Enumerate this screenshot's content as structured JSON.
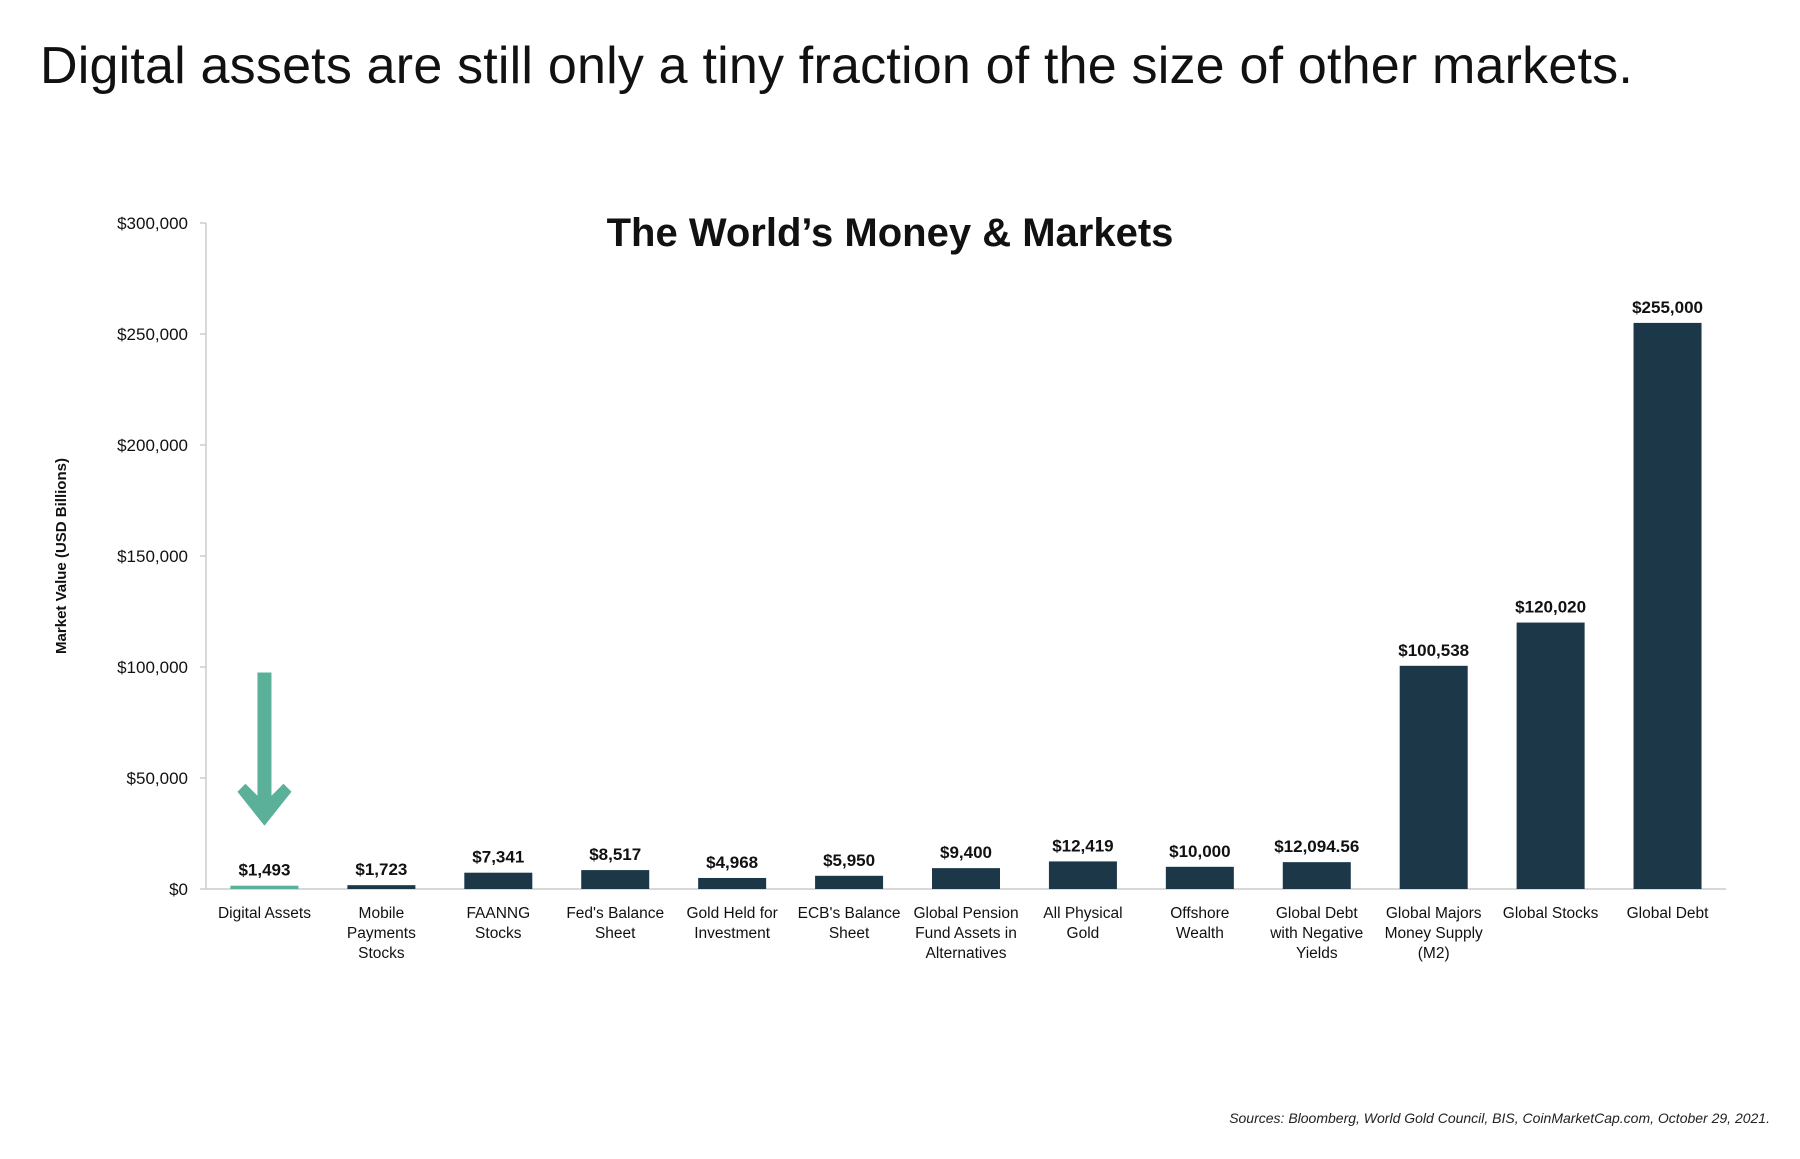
{
  "headline": "Digital assets are still only a tiny fraction of the size of other markets.",
  "source_note": "Sources: Bloomberg, World Gold Council, BIS, CoinMarketCap.com, October 29, 2021.",
  "colors": {
    "bar": "#1b3748",
    "highlight": "#5bb09a",
    "axis": "#cccccc",
    "text": "#111111"
  },
  "chart_data": {
    "type": "bar",
    "title": "The World’s Money & Markets",
    "ylabel": "Market Value (USD Billions)",
    "xlabel": "",
    "ylim": [
      0,
      300000
    ],
    "y_ticks": [
      0,
      50000,
      100000,
      150000,
      200000,
      250000,
      300000
    ],
    "y_tick_labels": [
      "$0",
      "$50,000",
      "$100,000",
      "$150,000",
      "$200,000",
      "$250,000",
      "$300,000"
    ],
    "grid": false,
    "categories": [
      [
        "Digital Assets"
      ],
      [
        "Mobile",
        "Payments",
        "Stocks"
      ],
      [
        "FAANNG",
        "Stocks"
      ],
      [
        "Fed's Balance",
        "Sheet"
      ],
      [
        "Gold Held for",
        "Investment"
      ],
      [
        "ECB's Balance",
        "Sheet"
      ],
      [
        "Global Pension",
        "Fund Assets in",
        "Alternatives"
      ],
      [
        "All Physical",
        "Gold"
      ],
      [
        "Offshore",
        "Wealth"
      ],
      [
        "Global Debt",
        "with Negative",
        "Yields"
      ],
      [
        "Global Majors",
        "Money Supply",
        "(M2)"
      ],
      [
        "Global Stocks"
      ],
      [
        "Global Debt"
      ]
    ],
    "values": [
      1493,
      1723,
      7341,
      8517,
      4968,
      5950,
      9400,
      12419,
      10000,
      12094.56,
      100538,
      120020,
      255000
    ],
    "data_labels": [
      "$1,493",
      "$1,723",
      "$7,341",
      "$8,517",
      "$4,968",
      "$5,950",
      "$9,400",
      "$12,419",
      "$10,000",
      "$12,094.56",
      "$100,538",
      "$120,020",
      "$255,000"
    ],
    "highlight_index": 0,
    "annotations": [
      {
        "type": "arrow",
        "points_to": "Digital Assets",
        "color": "#5bb09a"
      }
    ]
  }
}
